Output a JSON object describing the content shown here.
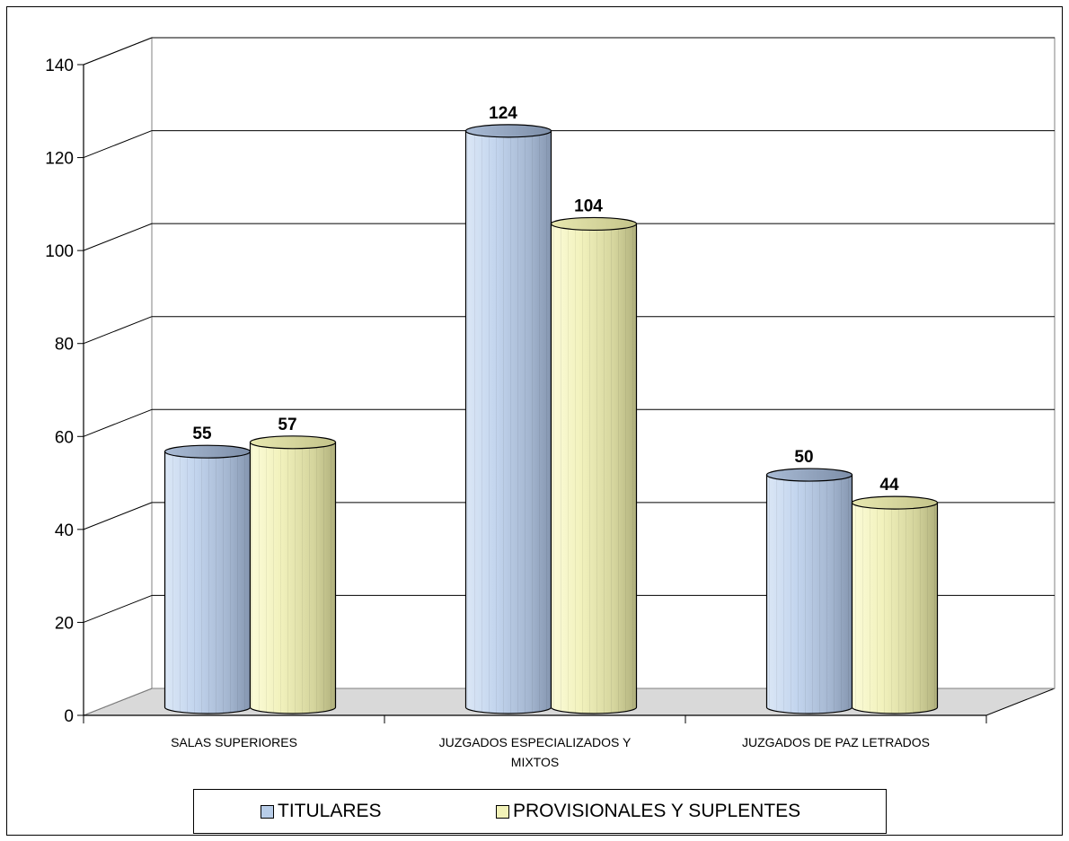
{
  "chart_data": {
    "type": "bar",
    "style": "3d-cylinder",
    "categories": [
      "SALAS SUPERIORES",
      "JUZGADOS ESPECIALIZADOS Y MIXTOS",
      "JUZGADOS DE PAZ LETRADOS"
    ],
    "category_lines": [
      [
        "SALAS SUPERIORES"
      ],
      [
        "JUZGADOS ESPECIALIZADOS Y",
        "MIXTOS"
      ],
      [
        "JUZGADOS DE PAZ LETRADOS"
      ]
    ],
    "series": [
      {
        "name": "TITULARES",
        "values": [
          55,
          124,
          50
        ],
        "color": "#b8cde8"
      },
      {
        "name": "PROVISIONALES Y SUPLENTES",
        "values": [
          57,
          104,
          44
        ],
        "color": "#f2f2b8"
      }
    ],
    "ylim": [
      0,
      140
    ],
    "yticks": [
      0,
      20,
      40,
      60,
      80,
      100,
      120,
      140
    ],
    "grid": true,
    "data_labels": true,
    "legend_position": "bottom"
  }
}
